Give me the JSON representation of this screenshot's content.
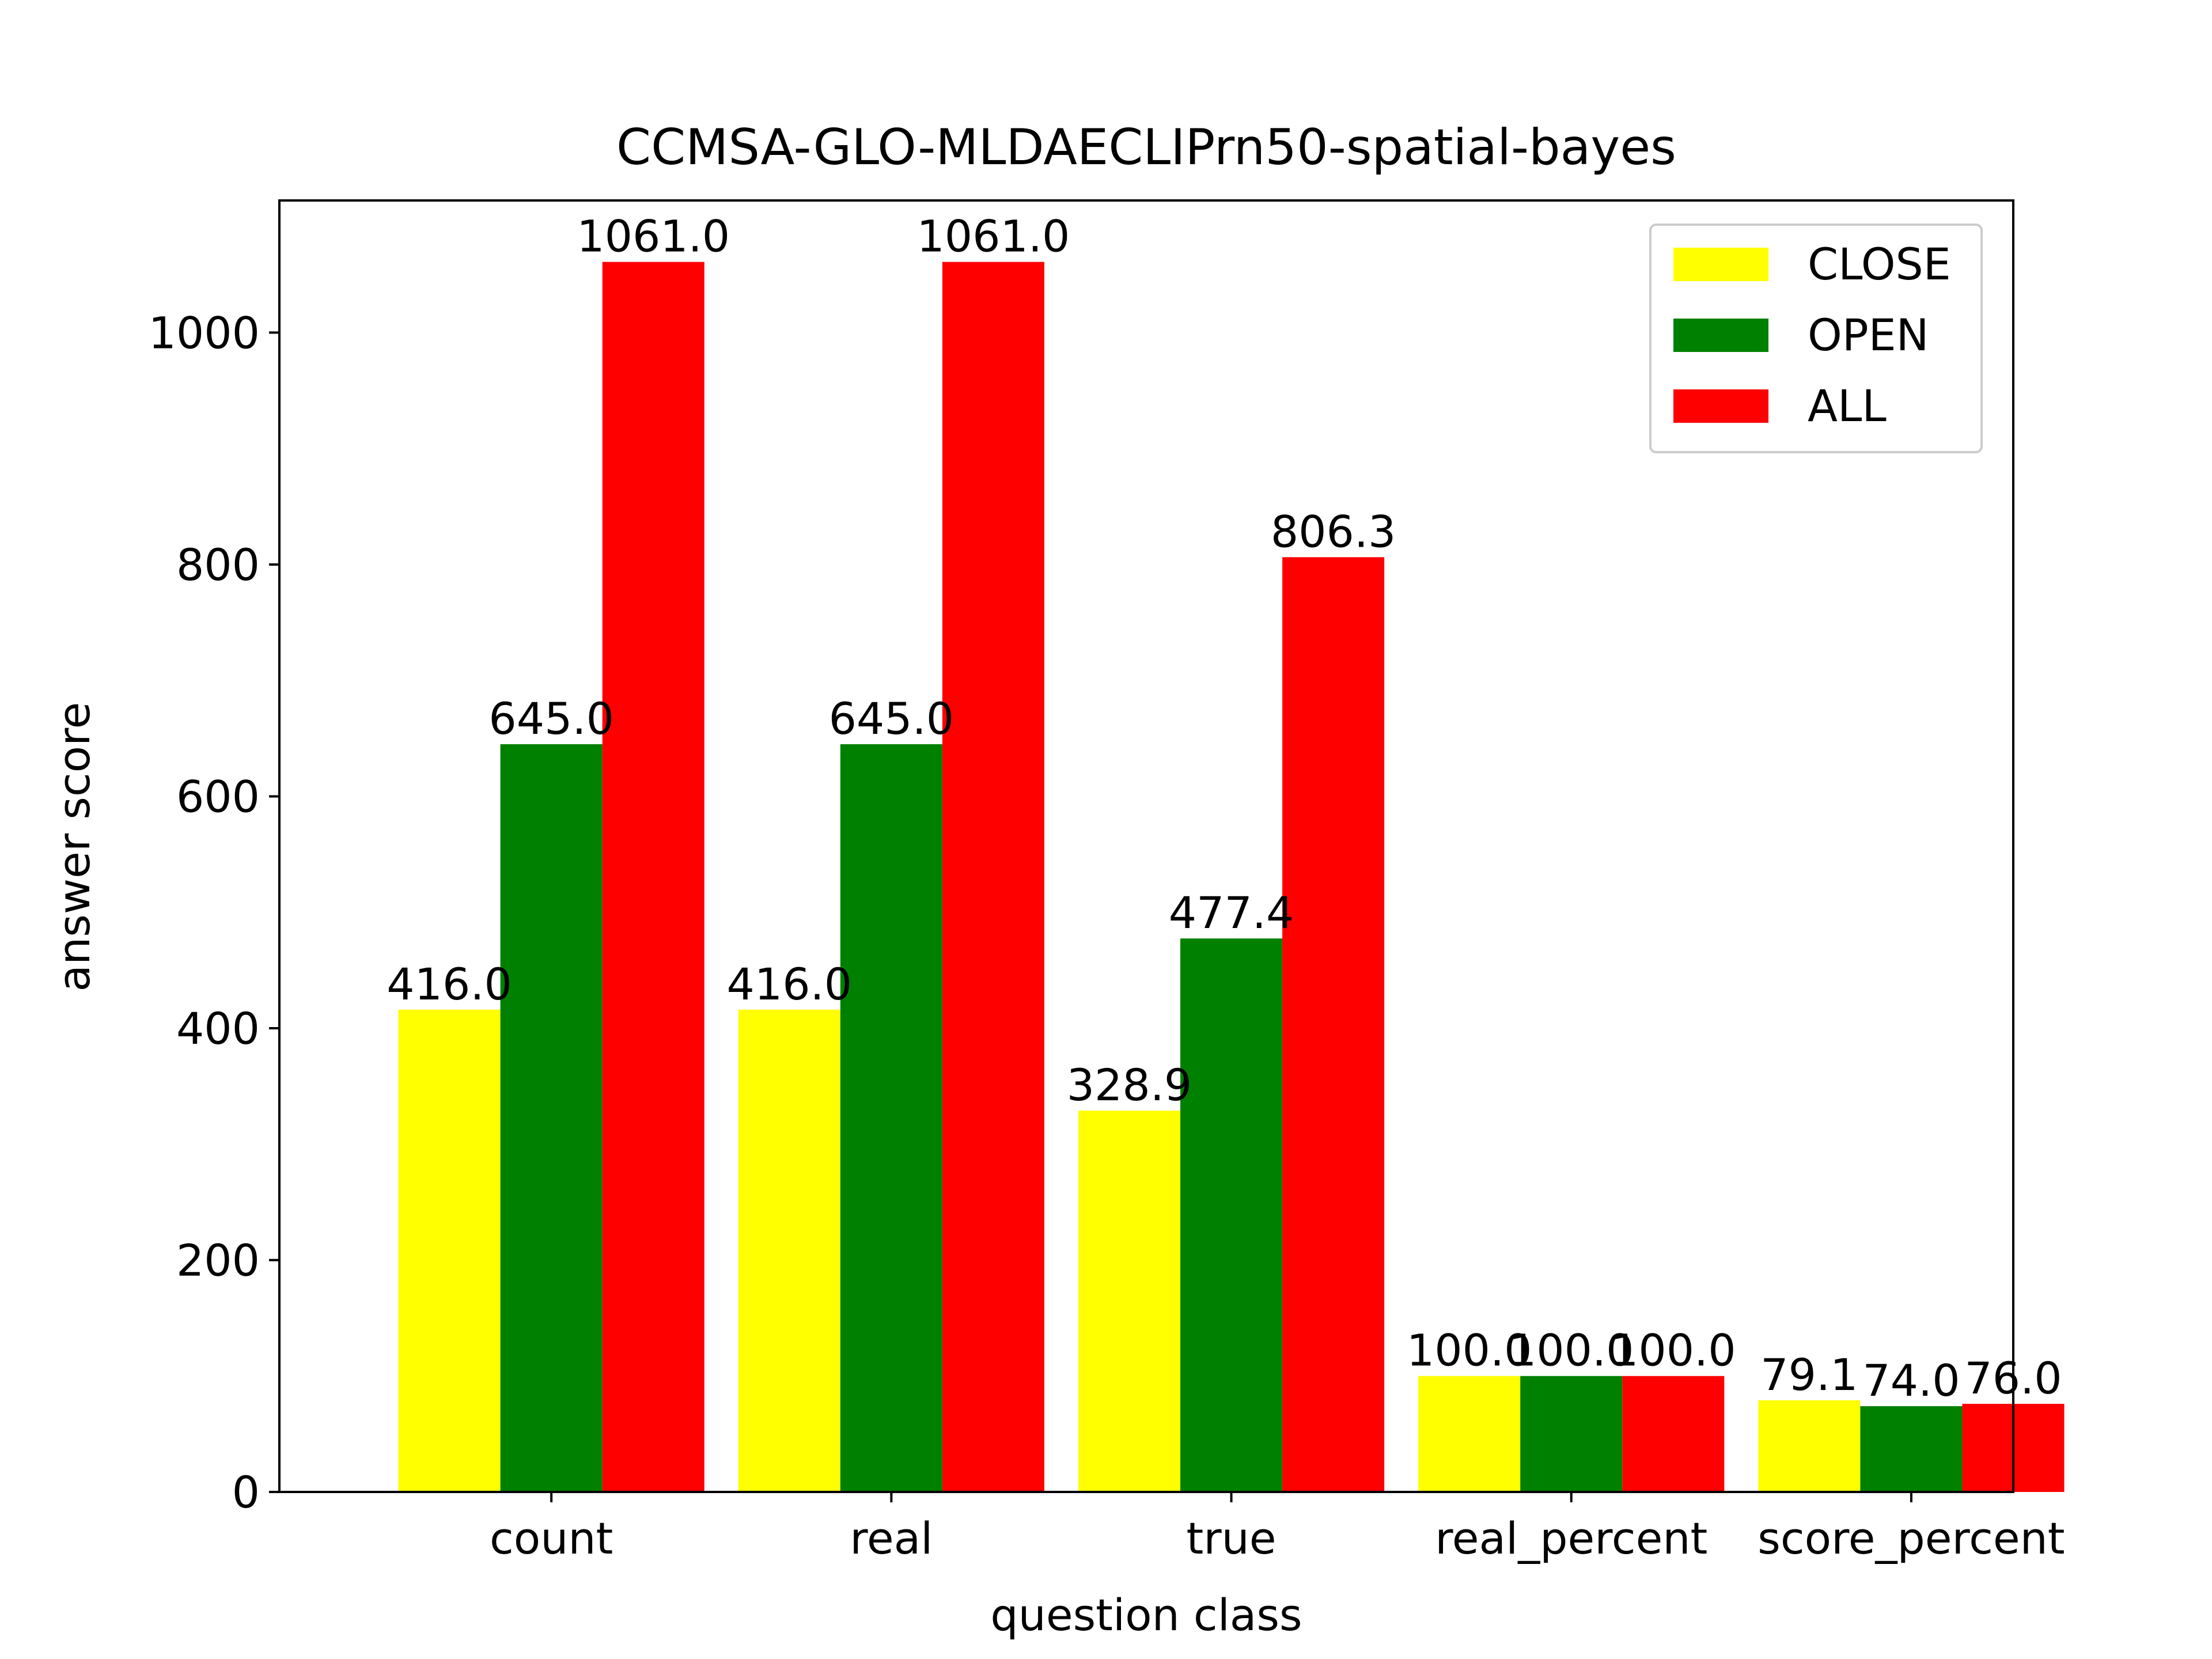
{
  "chart_data": {
    "type": "bar",
    "title": "CCMSA-GLO-MLDAECLIPrn50-spatial-bayes",
    "xlabel": "question class",
    "ylabel": "answer score",
    "categories": [
      "count",
      "real",
      "true",
      "real_percent",
      "score_percent"
    ],
    "series": [
      {
        "name": "CLOSE",
        "color": "#ffff00",
        "values": [
          416.0,
          416.0,
          328.9,
          100.0,
          79.1
        ],
        "labels": [
          "416.0",
          "416.0",
          "328.9",
          "100.0",
          "79.1"
        ]
      },
      {
        "name": "OPEN",
        "color": "#008000",
        "values": [
          645.0,
          645.0,
          477.4,
          100.0,
          74.0
        ],
        "labels": [
          "645.0",
          "645.0",
          "477.4",
          "100.0",
          "74.0"
        ]
      },
      {
        "name": "ALL",
        "color": "#ff0000",
        "values": [
          1061.0,
          1061.0,
          806.3,
          100.0,
          76.0
        ],
        "labels": [
          "1061.0",
          "1061.0",
          "806.3",
          "100.0",
          "76.0"
        ]
      }
    ],
    "yticks": [
      0,
      200,
      400,
      600,
      800,
      1000
    ],
    "ylim": [
      0,
      1114
    ],
    "grid": false,
    "legend": "top-right"
  }
}
